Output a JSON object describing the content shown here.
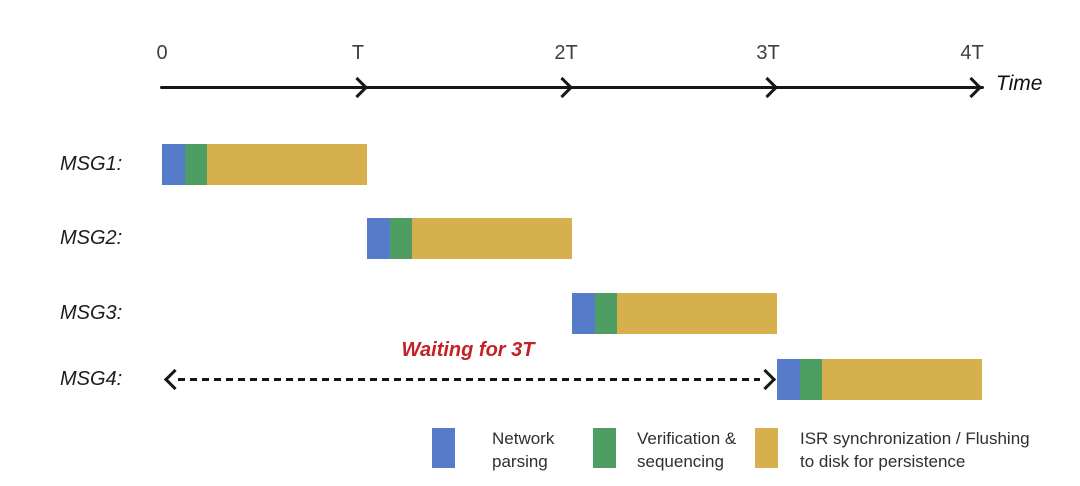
{
  "timeline": {
    "axis_label": "Time",
    "ticks": [
      "0",
      "T",
      "2T",
      "3T",
      "4T"
    ]
  },
  "rows": [
    {
      "label": "MSG1:",
      "start": "0",
      "end": "T"
    },
    {
      "label": "MSG2:",
      "start": "T",
      "end": "2T"
    },
    {
      "label": "MSG3:",
      "start": "2T",
      "end": "3T"
    },
    {
      "label": "MSG4:",
      "start": "3T",
      "end": "4T",
      "annotation": "Waiting for 3T"
    }
  ],
  "phases": [
    {
      "name": "Network parsing",
      "color": "#567BC8"
    },
    {
      "name": "Verification & sequencing",
      "color": "#4E9D63"
    },
    {
      "name": "ISR synchronization / Flushing to disk for persistence",
      "color": "#D5B04D"
    }
  ],
  "legend": [
    {
      "line1": "Network",
      "line2": "parsing"
    },
    {
      "line1": "Verification &",
      "line2": "sequencing"
    },
    {
      "line1": "ISR synchronization / Flushing",
      "line2": "to disk for persistence"
    }
  ],
  "colors": {
    "network_parsing": "#567BC8",
    "verification_sequencing": "#4E9D63",
    "isr_flush": "#D5B04D",
    "annotation": "#C32127",
    "axis": "#161616"
  }
}
